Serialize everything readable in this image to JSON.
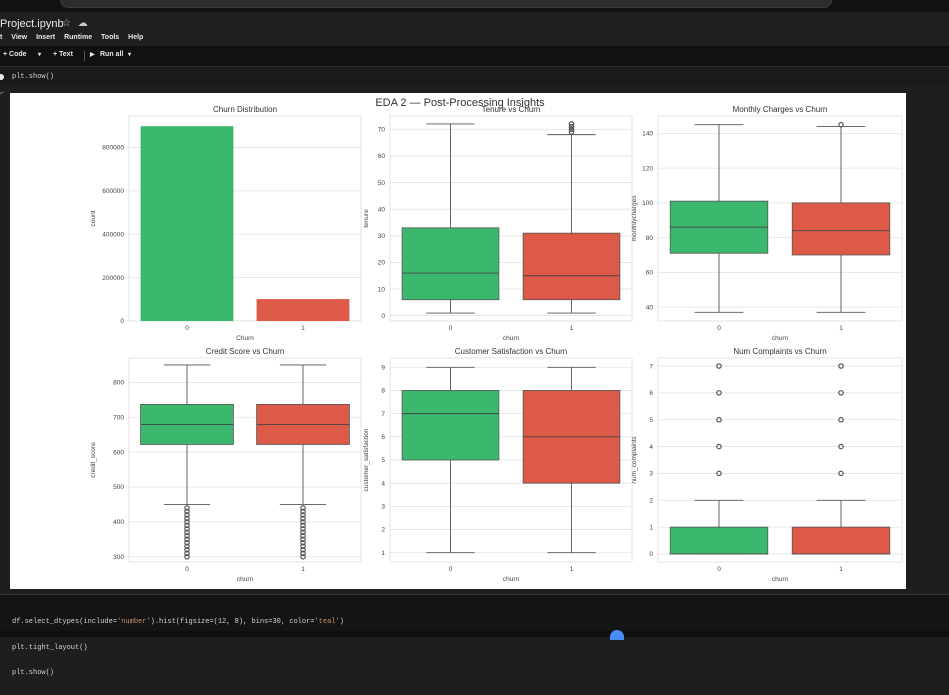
{
  "window": {
    "title": "Project.ipynb",
    "icons": [
      "star-icon",
      "cloud-icon"
    ]
  },
  "menu": [
    "t",
    "View",
    "Insert",
    "Runtime",
    "Tools",
    "Help"
  ],
  "toolbar": {
    "code_label": "+ Code",
    "text_label": "+ Text",
    "run_all_label": "Run all"
  },
  "cell1": {
    "code": "plt.show()"
  },
  "figure": {
    "suptitle": "EDA 2 — Post-Processing Insights",
    "colors": {
      "churn0": "#3cb76e",
      "churn1": "#de5a48"
    }
  },
  "chart_data": [
    {
      "type": "bar",
      "title": "Churn Distribution",
      "xlabel": "Churn",
      "ylabel": "count",
      "categories": [
        "0",
        "1"
      ],
      "values": [
        898000,
        101000
      ],
      "ylim": [
        0,
        945000
      ],
      "yticks": [
        0,
        200000,
        400000,
        600000,
        800000
      ],
      "grid": true
    },
    {
      "type": "box",
      "title": "Tenure vs Churn",
      "xlabel": "churn",
      "ylabel": "tenure",
      "categories": [
        "0",
        "1"
      ],
      "boxes": [
        {
          "whislo": 1,
          "q1": 6,
          "median": 16,
          "q3": 33,
          "whishi": 72,
          "fliers": []
        },
        {
          "whislo": 1,
          "q1": 6,
          "median": 15,
          "q3": 31,
          "whishi": 68,
          "fliers": [
            69,
            70,
            71,
            72
          ]
        }
      ],
      "ylim": [
        -2,
        75
      ],
      "yticks": [
        0,
        10,
        20,
        30,
        40,
        50,
        60,
        70
      ],
      "grid": true
    },
    {
      "type": "box",
      "title": "Monthly Charges vs Churn",
      "xlabel": "churn",
      "ylabel": "monthlycharges",
      "categories": [
        "0",
        "1"
      ],
      "boxes": [
        {
          "whislo": 37,
          "q1": 71,
          "median": 86,
          "q3": 101,
          "whishi": 145,
          "fliers": []
        },
        {
          "whislo": 37,
          "q1": 70,
          "median": 84,
          "q3": 100,
          "whishi": 144,
          "fliers": [
            145
          ]
        }
      ],
      "ylim": [
        32,
        150
      ],
      "yticks": [
        40,
        60,
        80,
        100,
        120,
        140
      ],
      "grid": true
    },
    {
      "type": "box",
      "title": "Credit Score vs Churn",
      "xlabel": "churn",
      "ylabel": "credit_score",
      "categories": [
        "0",
        "1"
      ],
      "boxes": [
        {
          "whislo": 450,
          "q1": 622,
          "median": 679,
          "q3": 737,
          "whishi": 850,
          "fliers": [
            300,
            310,
            320,
            330,
            340,
            350,
            360,
            370,
            380,
            390,
            400,
            410,
            420,
            430,
            440
          ]
        },
        {
          "whislo": 450,
          "q1": 622,
          "median": 679,
          "q3": 737,
          "whishi": 850,
          "fliers": [
            300,
            310,
            320,
            330,
            340,
            350,
            360,
            370,
            380,
            390,
            400,
            410,
            420,
            430,
            440
          ]
        }
      ],
      "ylim": [
        285,
        870
      ],
      "yticks": [
        300,
        400,
        500,
        600,
        700,
        800
      ],
      "grid": true
    },
    {
      "type": "box",
      "title": "Customer Satisfaction vs Churn",
      "xlabel": "churn",
      "ylabel": "customer_satisfaction",
      "categories": [
        "0",
        "1"
      ],
      "boxes": [
        {
          "whislo": 1,
          "q1": 5,
          "median": 7,
          "q3": 8,
          "whishi": 9,
          "fliers": []
        },
        {
          "whislo": 1,
          "q1": 4,
          "median": 6,
          "q3": 8,
          "whishi": 9,
          "fliers": []
        }
      ],
      "ylim": [
        0.6,
        9.4
      ],
      "yticks": [
        1,
        2,
        3,
        4,
        5,
        6,
        7,
        8,
        9
      ],
      "grid": true
    },
    {
      "type": "box",
      "title": "Num Complaints vs Churn",
      "xlabel": "churn",
      "ylabel": "num_complaints",
      "categories": [
        "0",
        "1"
      ],
      "boxes": [
        {
          "whislo": 0,
          "q1": 0,
          "median": 0,
          "q3": 1,
          "whishi": 2,
          "fliers": [
            3,
            4,
            5,
            6,
            7
          ]
        },
        {
          "whislo": 0,
          "q1": 0,
          "median": 0,
          "q3": 1,
          "whishi": 2,
          "fliers": [
            3,
            4,
            5,
            6,
            7
          ]
        }
      ],
      "ylim": [
        -0.3,
        7.3
      ],
      "yticks": [
        0,
        1,
        2,
        3,
        4,
        5,
        6,
        7
      ],
      "grid": true
    }
  ],
  "cell2": {
    "line1_pre": "df.select_dtypes(include=",
    "line1_str1": "'number'",
    "line1_mid": ").hist(figsize=(12, 8), bins=30, color=",
    "line1_str2": "'teal'",
    "line1_post": ")",
    "line2": "plt.tight_layout()",
    "line3": "plt.show()"
  }
}
